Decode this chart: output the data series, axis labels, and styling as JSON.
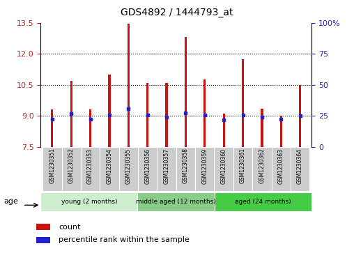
{
  "title": "GDS4892 / 1444793_at",
  "samples": [
    "GSM1230351",
    "GSM1230352",
    "GSM1230353",
    "GSM1230354",
    "GSM1230355",
    "GSM1230356",
    "GSM1230357",
    "GSM1230358",
    "GSM1230359",
    "GSM1230360",
    "GSM1230361",
    "GSM1230362",
    "GSM1230363",
    "GSM1230364"
  ],
  "counts": [
    9.3,
    10.7,
    9.3,
    11.0,
    13.45,
    10.6,
    10.6,
    12.8,
    10.75,
    9.1,
    11.75,
    9.35,
    9.0,
    10.5
  ],
  "count_base": 7.5,
  "percentile_vals": [
    8.85,
    9.1,
    8.85,
    9.05,
    9.35,
    9.05,
    8.95,
    9.15,
    9.05,
    8.8,
    9.05,
    8.95,
    8.85,
    9.0
  ],
  "ylim_left": [
    7.5,
    13.5
  ],
  "yticks_left": [
    7.5,
    9.0,
    10.5,
    12.0,
    13.5
  ],
  "ylim_right": [
    0,
    100
  ],
  "yticks_right": [
    0,
    25,
    50,
    75,
    100
  ],
  "ytick_labels_right": [
    "0",
    "25",
    "50",
    "75",
    "100%"
  ],
  "bar_color": "#CC1111",
  "percentile_color": "#2222CC",
  "groups": [
    {
      "label": "young (2 months)",
      "start": 0,
      "end": 5,
      "color": "#CCEECC"
    },
    {
      "label": "middle aged (12 months)",
      "start": 5,
      "end": 9,
      "color": "#88CC88"
    },
    {
      "label": "aged (24 months)",
      "start": 9,
      "end": 14,
      "color": "#44CC44"
    }
  ],
  "age_label": "age",
  "legend_count_label": "count",
  "legend_percentile_label": "percentile rank within the sample",
  "left_tick_color": "#CC2222",
  "right_tick_color": "#2222CC",
  "bar_width": 0.12,
  "grid_linestyle": "dotted",
  "grid_yticks": [
    9.0,
    10.5,
    12.0
  ],
  "sample_box_color": "#CCCCCC",
  "bg_color": "#FFFFFF"
}
